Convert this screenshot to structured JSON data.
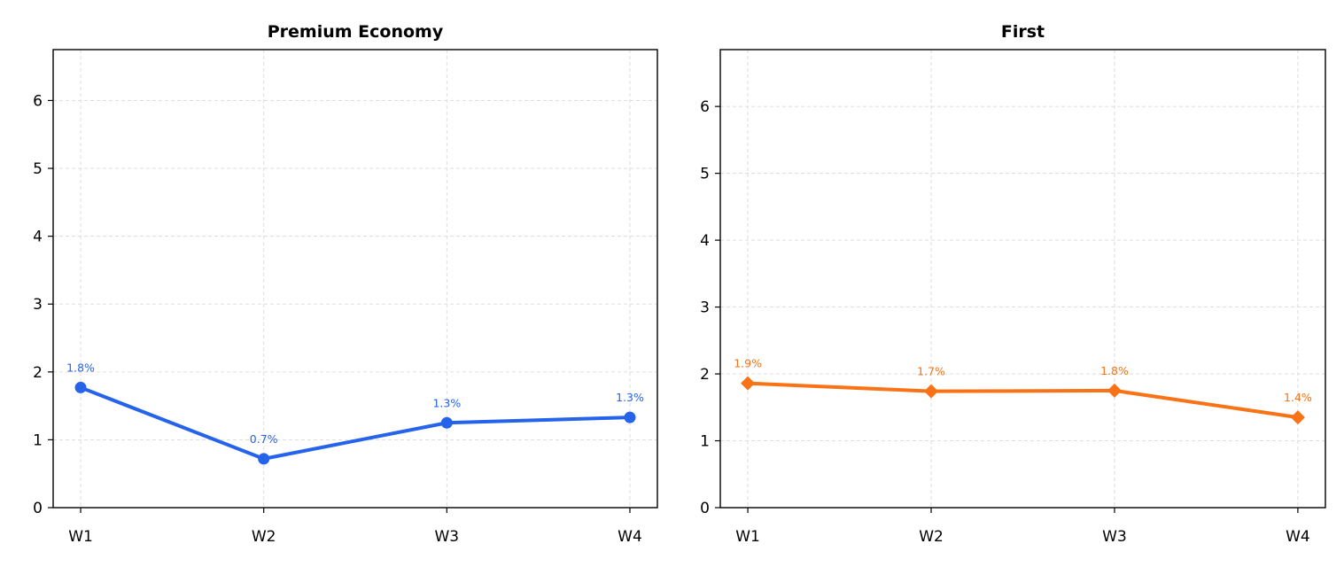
{
  "chart_data": [
    {
      "type": "line",
      "title": "Premium Economy",
      "xlabel": "",
      "ylabel": "",
      "categories": [
        "W1",
        "W2",
        "W3",
        "W4"
      ],
      "values": [
        1.77,
        0.72,
        1.25,
        1.33
      ],
      "data_labels": [
        "1.8%",
        "0.7%",
        "1.3%",
        "1.3%"
      ],
      "ylim": [
        0,
        6.75
      ],
      "yticks": [
        "0",
        "1",
        "2",
        "3",
        "4",
        "5",
        "6"
      ],
      "grid": true,
      "marker": "circle",
      "color": "#2563eb"
    },
    {
      "type": "line",
      "title": "First",
      "xlabel": "",
      "ylabel": "",
      "categories": [
        "W1",
        "W2",
        "W3",
        "W4"
      ],
      "values": [
        1.86,
        1.74,
        1.75,
        1.35
      ],
      "data_labels": [
        "1.9%",
        "1.7%",
        "1.8%",
        "1.4%"
      ],
      "ylim": [
        0,
        6.85
      ],
      "yticks": [
        "0",
        "1",
        "2",
        "3",
        "4",
        "5",
        "6"
      ],
      "grid": true,
      "marker": "diamond",
      "color": "#f97316"
    }
  ]
}
